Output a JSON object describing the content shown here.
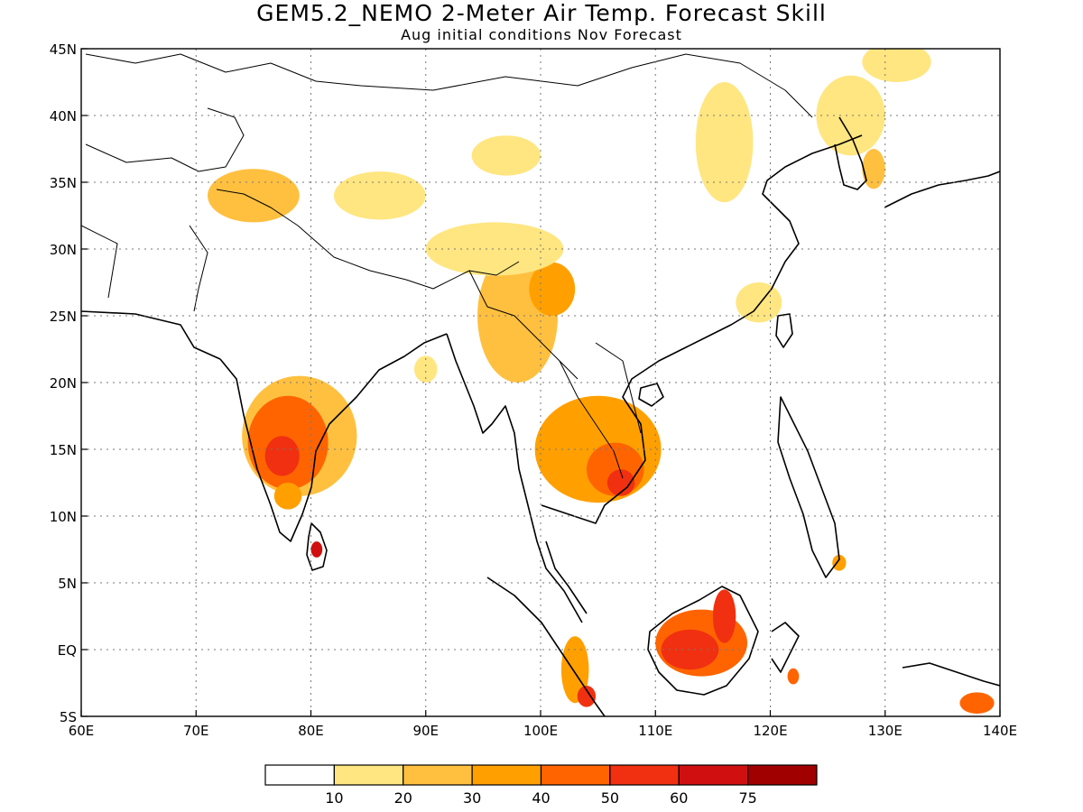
{
  "title": "GEM5.2_NEMO 2-Meter Air Temp. Forecast Skill",
  "subtitle": "Aug initial conditions  Nov Forecast",
  "map": {
    "lon_range": [
      60,
      140
    ],
    "lat_range": [
      -5,
      45
    ],
    "lon_ticks": [
      {
        "value": 60,
        "label": "60E"
      },
      {
        "value": 70,
        "label": "70E"
      },
      {
        "value": 80,
        "label": "80E"
      },
      {
        "value": 90,
        "label": "90E"
      },
      {
        "value": 100,
        "label": "100E"
      },
      {
        "value": 110,
        "label": "110E"
      },
      {
        "value": 120,
        "label": "120E"
      },
      {
        "value": 130,
        "label": "130E"
      },
      {
        "value": 140,
        "label": "140E"
      }
    ],
    "lat_ticks": [
      {
        "value": 45,
        "label": "45N"
      },
      {
        "value": 40,
        "label": "40N"
      },
      {
        "value": 35,
        "label": "35N"
      },
      {
        "value": 30,
        "label": "30N"
      },
      {
        "value": 25,
        "label": "25N"
      },
      {
        "value": 20,
        "label": "20N"
      },
      {
        "value": 15,
        "label": "15N"
      },
      {
        "value": 10,
        "label": "10N"
      },
      {
        "value": 5,
        "label": "5N"
      },
      {
        "value": 0,
        "label": "EQ"
      },
      {
        "value": -5,
        "label": "5S"
      }
    ],
    "grid": true
  },
  "colorbar": {
    "colors": [
      "#ffffff",
      "#ffe680",
      "#ffc040",
      "#ffa000",
      "#ff6400",
      "#f03010",
      "#d01010",
      "#a00000"
    ],
    "labels": [
      "10",
      "20",
      "30",
      "40",
      "50",
      "60",
      "75"
    ]
  },
  "skill_regions": [
    {
      "lon": 79,
      "lat": 16,
      "rx": 5,
      "ry": 4.5,
      "level": 2
    },
    {
      "lon": 78,
      "lat": 15.5,
      "rx": 3.5,
      "ry": 3.5,
      "level": 4
    },
    {
      "lon": 77.5,
      "lat": 14.5,
      "rx": 1.5,
      "ry": 1.5,
      "level": 5
    },
    {
      "lon": 80.5,
      "lat": 7.5,
      "rx": 0.5,
      "ry": 0.6,
      "level": 6
    },
    {
      "lon": 78,
      "lat": 11.5,
      "rx": 1.2,
      "ry": 1,
      "level": 3
    },
    {
      "lon": 105,
      "lat": 15,
      "rx": 5.5,
      "ry": 4,
      "level": 3
    },
    {
      "lon": 106.5,
      "lat": 13.5,
      "rx": 2.5,
      "ry": 2,
      "level": 4
    },
    {
      "lon": 107,
      "lat": 12.5,
      "rx": 1.2,
      "ry": 1,
      "level": 5
    },
    {
      "lon": 98,
      "lat": 25,
      "rx": 3.5,
      "ry": 5,
      "level": 2
    },
    {
      "lon": 101,
      "lat": 27,
      "rx": 2,
      "ry": 2,
      "level": 3
    },
    {
      "lon": 114,
      "lat": 0.5,
      "rx": 4,
      "ry": 2.5,
      "level": 4
    },
    {
      "lon": 113,
      "lat": 0,
      "rx": 2.5,
      "ry": 1.5,
      "level": 5
    },
    {
      "lon": 116,
      "lat": 2.5,
      "rx": 1,
      "ry": 2,
      "level": 5
    },
    {
      "lon": 103,
      "lat": -1.5,
      "rx": 1.2,
      "ry": 2.5,
      "level": 3
    },
    {
      "lon": 104,
      "lat": -3.5,
      "rx": 0.8,
      "ry": 0.8,
      "level": 5
    },
    {
      "lon": 138,
      "lat": -4,
      "rx": 1.5,
      "ry": 0.8,
      "level": 4
    },
    {
      "lon": 75,
      "lat": 34,
      "rx": 4,
      "ry": 2,
      "level": 2
    },
    {
      "lon": 86,
      "lat": 34,
      "rx": 4,
      "ry": 1.8,
      "level": 1
    },
    {
      "lon": 96,
      "lat": 30,
      "rx": 6,
      "ry": 2,
      "level": 1
    },
    {
      "lon": 97,
      "lat": 37,
      "rx": 3,
      "ry": 1.5,
      "level": 1
    },
    {
      "lon": 116,
      "lat": 38,
      "rx": 2.5,
      "ry": 4.5,
      "level": 1
    },
    {
      "lon": 127,
      "lat": 40,
      "rx": 3,
      "ry": 3,
      "level": 1
    },
    {
      "lon": 129,
      "lat": 36,
      "rx": 1,
      "ry": 1.5,
      "level": 2
    },
    {
      "lon": 131,
      "lat": 44,
      "rx": 3,
      "ry": 1.5,
      "level": 1
    },
    {
      "lon": 119,
      "lat": 26,
      "rx": 2,
      "ry": 1.5,
      "level": 1
    },
    {
      "lon": 90,
      "lat": 21,
      "rx": 1,
      "ry": 1,
      "level": 1
    },
    {
      "lon": 122,
      "lat": -2,
      "rx": 0.5,
      "ry": 0.6,
      "level": 4
    },
    {
      "lon": 126,
      "lat": 6.5,
      "rx": 0.6,
      "ry": 0.6,
      "level": 3
    }
  ]
}
